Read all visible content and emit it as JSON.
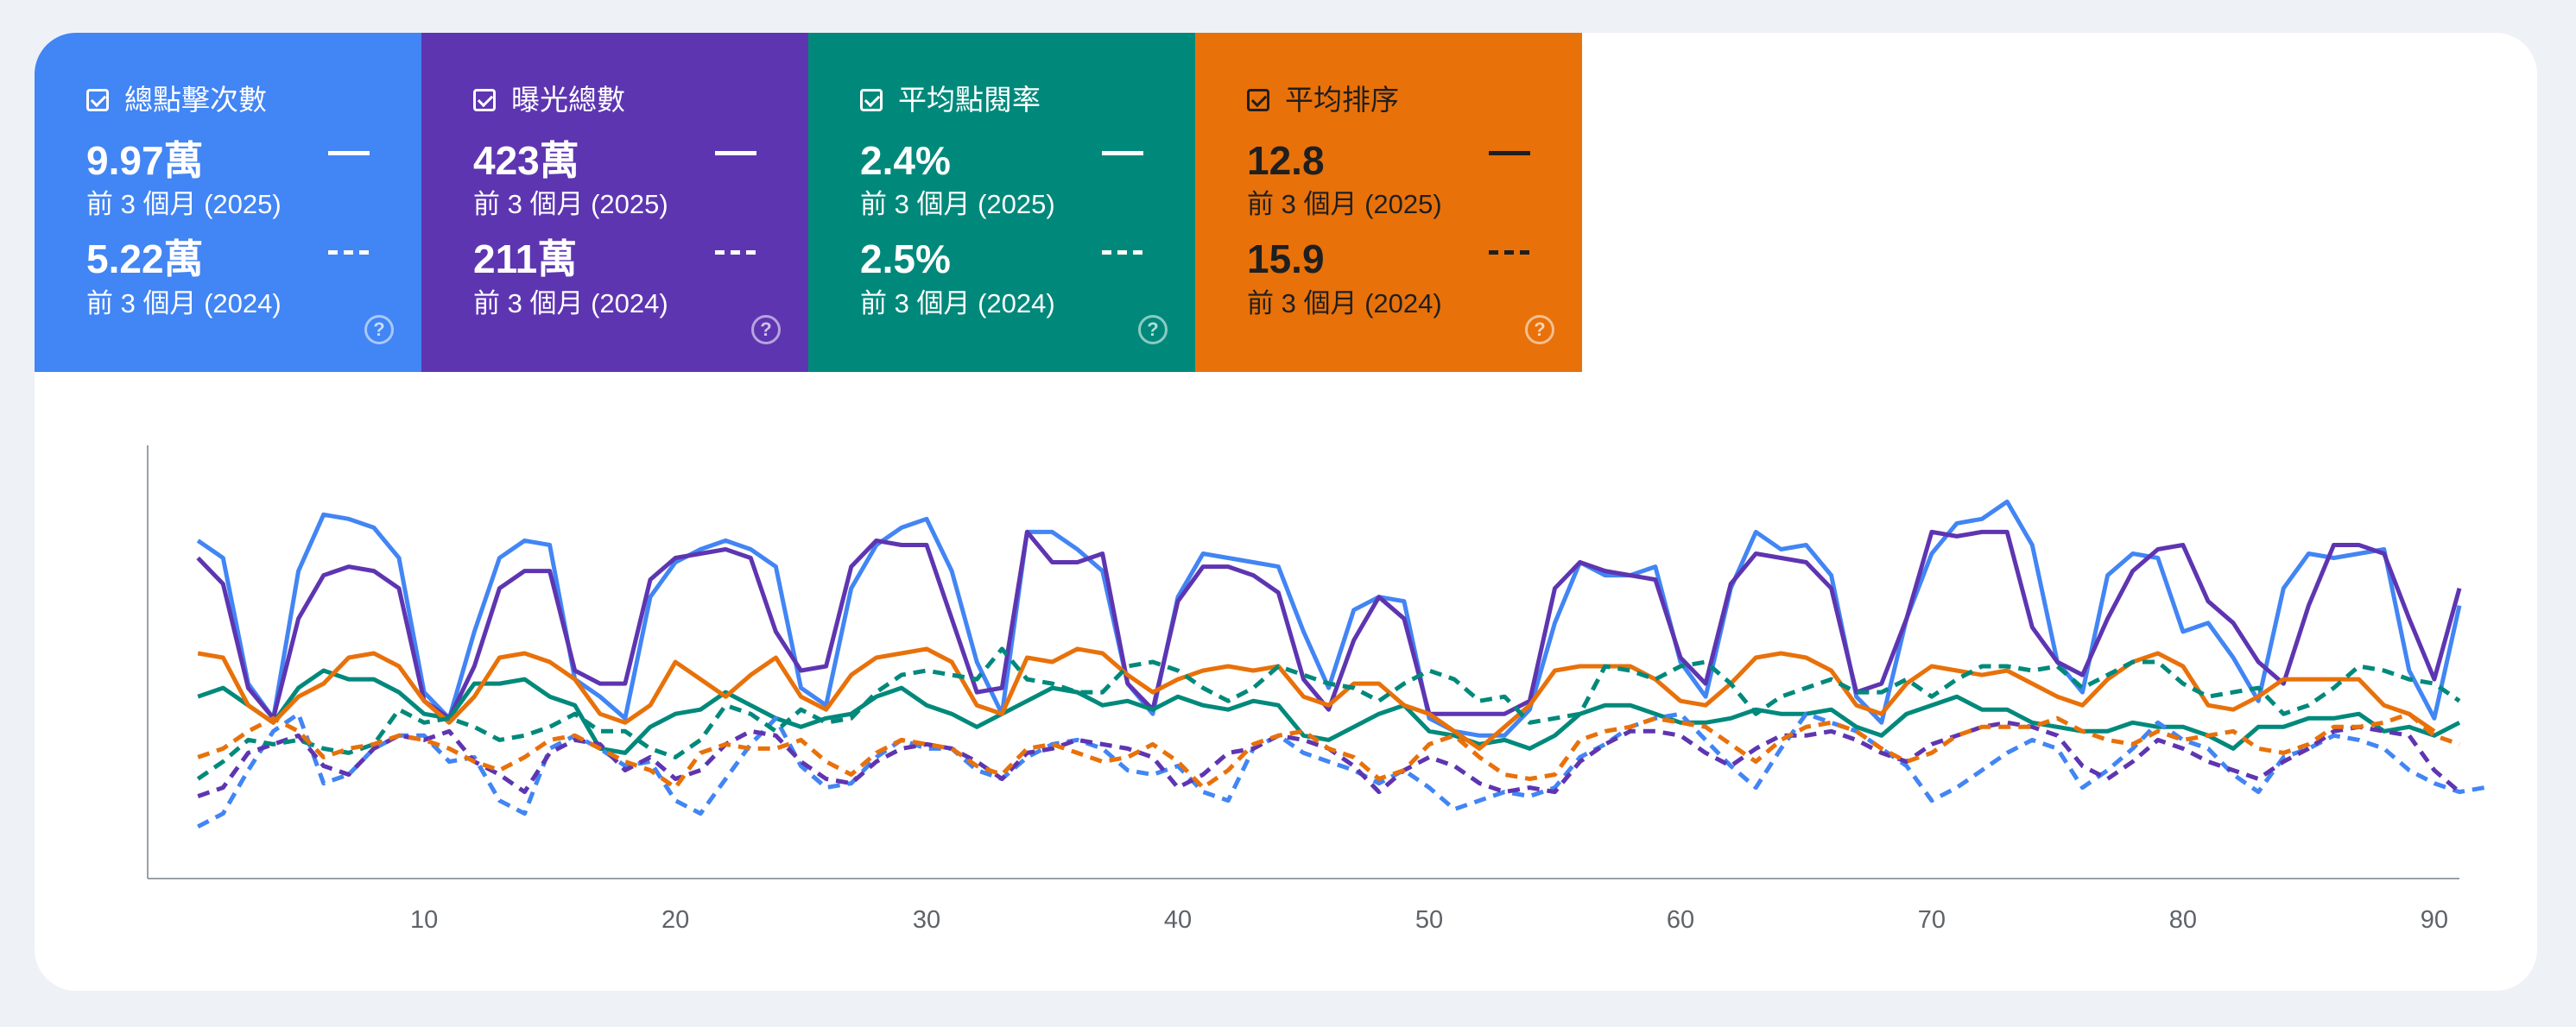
{
  "metrics": [
    {
      "label": "總點擊次數",
      "value_current": "9.97萬",
      "period_current": "前 3 個月 (2025)",
      "value_previous": "5.22萬",
      "period_previous": "前 3 個月 (2024)",
      "color": "#4285f4",
      "help_icon": "help-icon"
    },
    {
      "label": "曝光總數",
      "value_current": "423萬",
      "period_current": "前 3 個月 (2025)",
      "value_previous": "211萬",
      "period_previous": "前 3 個月 (2024)",
      "color": "#5e35b1",
      "help_icon": "help-icon"
    },
    {
      "label": "平均點閱率",
      "value_current": "2.4%",
      "period_current": "前 3 個月 (2025)",
      "value_previous": "2.5%",
      "period_previous": "前 3 個月 (2024)",
      "color": "#00897b",
      "help_icon": "help-icon"
    },
    {
      "label": "平均排序",
      "value_current": "12.8",
      "period_current": "前 3 個月 (2025)",
      "value_previous": "15.9",
      "period_previous": "前 3 個月 (2024)",
      "color": "#e8710a",
      "help_icon": "help-icon"
    }
  ],
  "chart_data": {
    "type": "line",
    "x_ticks": [
      10,
      20,
      30,
      40,
      50,
      60,
      70,
      80,
      90
    ],
    "xlim": [
      -1,
      91
    ],
    "ylim": [
      0,
      100
    ],
    "grid": false,
    "series": [
      {
        "id": "clicks-2025",
        "color": "#4285f4",
        "style": "solid",
        "x_start": 1,
        "values": [
          78,
          74,
          45,
          37,
          71,
          84,
          83,
          81,
          74,
          43,
          37,
          57,
          74,
          78,
          77,
          46,
          42,
          37,
          65,
          73,
          76,
          78,
          76,
          72,
          44,
          40,
          67,
          77,
          81,
          83,
          71,
          50,
          38,
          80,
          80,
          76,
          71,
          45,
          38,
          65,
          75,
          74,
          73,
          72,
          57,
          44,
          62,
          65,
          64,
          37,
          34,
          33,
          33,
          39,
          59,
          73,
          70,
          70,
          72,
          50,
          42,
          67,
          80,
          76,
          77,
          70,
          42,
          36,
          60,
          75,
          82,
          83,
          87,
          77,
          50,
          43,
          70,
          75,
          74,
          57,
          59,
          51,
          41,
          67,
          75,
          74,
          75,
          76,
          48,
          37,
          63
        ]
      },
      {
        "id": "impressions-2025",
        "color": "#5e35b1",
        "style": "solid",
        "x_start": 1,
        "values": [
          74,
          68,
          44,
          37,
          60,
          70,
          72,
          71,
          67,
          41,
          37,
          49,
          67,
          71,
          71,
          48,
          45,
          45,
          69,
          74,
          75,
          76,
          74,
          57,
          48,
          49,
          72,
          78,
          77,
          77,
          60,
          43,
          44,
          80,
          73,
          73,
          75,
          45,
          39,
          64,
          72,
          72,
          70,
          66,
          46,
          39,
          55,
          65,
          60,
          38,
          38,
          38,
          38,
          41,
          67,
          73,
          71,
          70,
          69,
          51,
          45,
          68,
          75,
          74,
          73,
          67,
          43,
          45,
          60,
          80,
          79,
          80,
          80,
          58,
          50,
          47,
          60,
          71,
          76,
          77,
          64,
          59,
          50,
          45,
          63,
          77,
          77,
          75,
          60,
          46,
          67
        ]
      },
      {
        "id": "ctr-2025",
        "color": "#00897b",
        "style": "solid",
        "x_start": 1,
        "values": [
          42,
          44,
          40,
          36,
          44,
          48,
          46,
          46,
          43,
          38,
          37,
          45,
          45,
          46,
          42,
          40,
          30,
          29,
          35,
          38,
          39,
          43,
          40,
          37,
          35,
          37,
          38,
          42,
          44,
          40,
          38,
          35,
          38,
          41,
          44,
          43,
          40,
          41,
          39,
          42,
          40,
          39,
          41,
          40,
          33,
          32,
          35,
          38,
          40,
          34,
          33,
          31,
          32,
          30,
          33,
          38,
          40,
          40,
          38,
          36,
          36,
          37,
          39,
          38,
          38,
          39,
          35,
          33,
          38,
          40,
          42,
          39,
          39,
          36,
          35,
          34,
          34,
          36,
          35,
          35,
          33,
          30,
          35,
          35,
          37,
          37,
          38,
          34,
          35,
          33,
          36
        ]
      },
      {
        "id": "position-2025",
        "color": "#e8710a",
        "style": "solid",
        "x_start": 1,
        "values": [
          52,
          51,
          40,
          36,
          42,
          45,
          51,
          52,
          49,
          41,
          36,
          42,
          51,
          52,
          50,
          46,
          38,
          36,
          40,
          50,
          46,
          42,
          47,
          51,
          42,
          39,
          47,
          51,
          52,
          53,
          50,
          40,
          38,
          51,
          50,
          53,
          52,
          47,
          43,
          46,
          48,
          49,
          48,
          49,
          42,
          40,
          45,
          45,
          40,
          38,
          34,
          30,
          35,
          40,
          48,
          49,
          49,
          49,
          46,
          41,
          40,
          45,
          51,
          52,
          51,
          48,
          40,
          38,
          45,
          49,
          48,
          47,
          48,
          45,
          42,
          40,
          46,
          50,
          52,
          49,
          40,
          39,
          42,
          46,
          46,
          46,
          46,
          40,
          38,
          34
        ]
      },
      {
        "id": "clicks-2024",
        "color": "#4285f4",
        "style": "dashed",
        "x_start": 1,
        "values": [
          12,
          15,
          25,
          34,
          38,
          22,
          24,
          30,
          33,
          33,
          27,
          28,
          18,
          15,
          30,
          33,
          30,
          26,
          27,
          18,
          15,
          23,
          31,
          37,
          26,
          21,
          22,
          28,
          32,
          30,
          30,
          25,
          23,
          28,
          31,
          32,
          30,
          25,
          24,
          26,
          20,
          18,
          30,
          33,
          29,
          27,
          25,
          22,
          25,
          21,
          16,
          18,
          20,
          19,
          21,
          28,
          31,
          35,
          37,
          38,
          32,
          26,
          21,
          30,
          38,
          36,
          34,
          30,
          26,
          18,
          21,
          25,
          29,
          32,
          30,
          21,
          25,
          30,
          36,
          32,
          30,
          24,
          20,
          28,
          30,
          33,
          32,
          30,
          25,
          22,
          20,
          21
        ]
      },
      {
        "id": "impressions-2024",
        "color": "#5e35b1",
        "style": "dashed",
        "x_start": 1,
        "values": [
          19,
          21,
          29,
          31,
          33,
          26,
          24,
          30,
          33,
          32,
          34,
          27,
          24,
          20,
          29,
          32,
          31,
          25,
          28,
          23,
          25,
          31,
          34,
          33,
          27,
          23,
          22,
          27,
          30,
          31,
          30,
          27,
          23,
          29,
          30,
          32,
          31,
          30,
          28,
          21,
          24,
          29,
          30,
          33,
          32,
          30,
          26,
          20,
          25,
          28,
          26,
          22,
          20,
          21,
          20,
          27,
          31,
          34,
          34,
          33,
          29,
          26,
          30,
          33,
          33,
          34,
          32,
          29,
          27,
          31,
          33,
          35,
          36,
          35,
          33,
          26,
          23,
          27,
          32,
          30,
          27,
          25,
          23,
          27,
          30,
          34,
          35,
          34,
          33,
          25,
          20
        ]
      },
      {
        "id": "ctr-2024",
        "color": "#00897b",
        "style": "dashed",
        "x_start": 1,
        "values": [
          23,
          27,
          32,
          31,
          32,
          30,
          29,
          31,
          39,
          36,
          37,
          35,
          32,
          33,
          35,
          38,
          34,
          34,
          30,
          28,
          32,
          40,
          38,
          34,
          39,
          36,
          37,
          43,
          47,
          48,
          47,
          46,
          53,
          46,
          45,
          43,
          43,
          49,
          50,
          48,
          44,
          41,
          44,
          49,
          47,
          45,
          44,
          41,
          45,
          48,
          46,
          41,
          42,
          36,
          37,
          38,
          49,
          48,
          46,
          49,
          50,
          45,
          38,
          42,
          44,
          46,
          43,
          43,
          46,
          42,
          46,
          49,
          49,
          48,
          49,
          44,
          47,
          50,
          50,
          45,
          42,
          43,
          44,
          38,
          40,
          44,
          49,
          48,
          46,
          45,
          41
        ]
      },
      {
        "id": "position-2024",
        "color": "#e8710a",
        "style": "dashed",
        "x_start": 1,
        "values": [
          28,
          30,
          34,
          37,
          34,
          28,
          30,
          31,
          33,
          32,
          30,
          27,
          25,
          28,
          32,
          33,
          30,
          27,
          25,
          21,
          29,
          31,
          30,
          30,
          32,
          27,
          24,
          29,
          32,
          31,
          30,
          26,
          24,
          30,
          31,
          29,
          27,
          28,
          31,
          27,
          21,
          25,
          31,
          33,
          34,
          30,
          28,
          23,
          25,
          31,
          33,
          28,
          24,
          23,
          24,
          32,
          34,
          35,
          37,
          36,
          35,
          31,
          27,
          32,
          35,
          36,
          34,
          30,
          27,
          29,
          33,
          35,
          35,
          35,
          37,
          34,
          32,
          31,
          34,
          32,
          33,
          34,
          30,
          29,
          31,
          35,
          35,
          36,
          38,
          33,
          31
        ]
      }
    ]
  }
}
